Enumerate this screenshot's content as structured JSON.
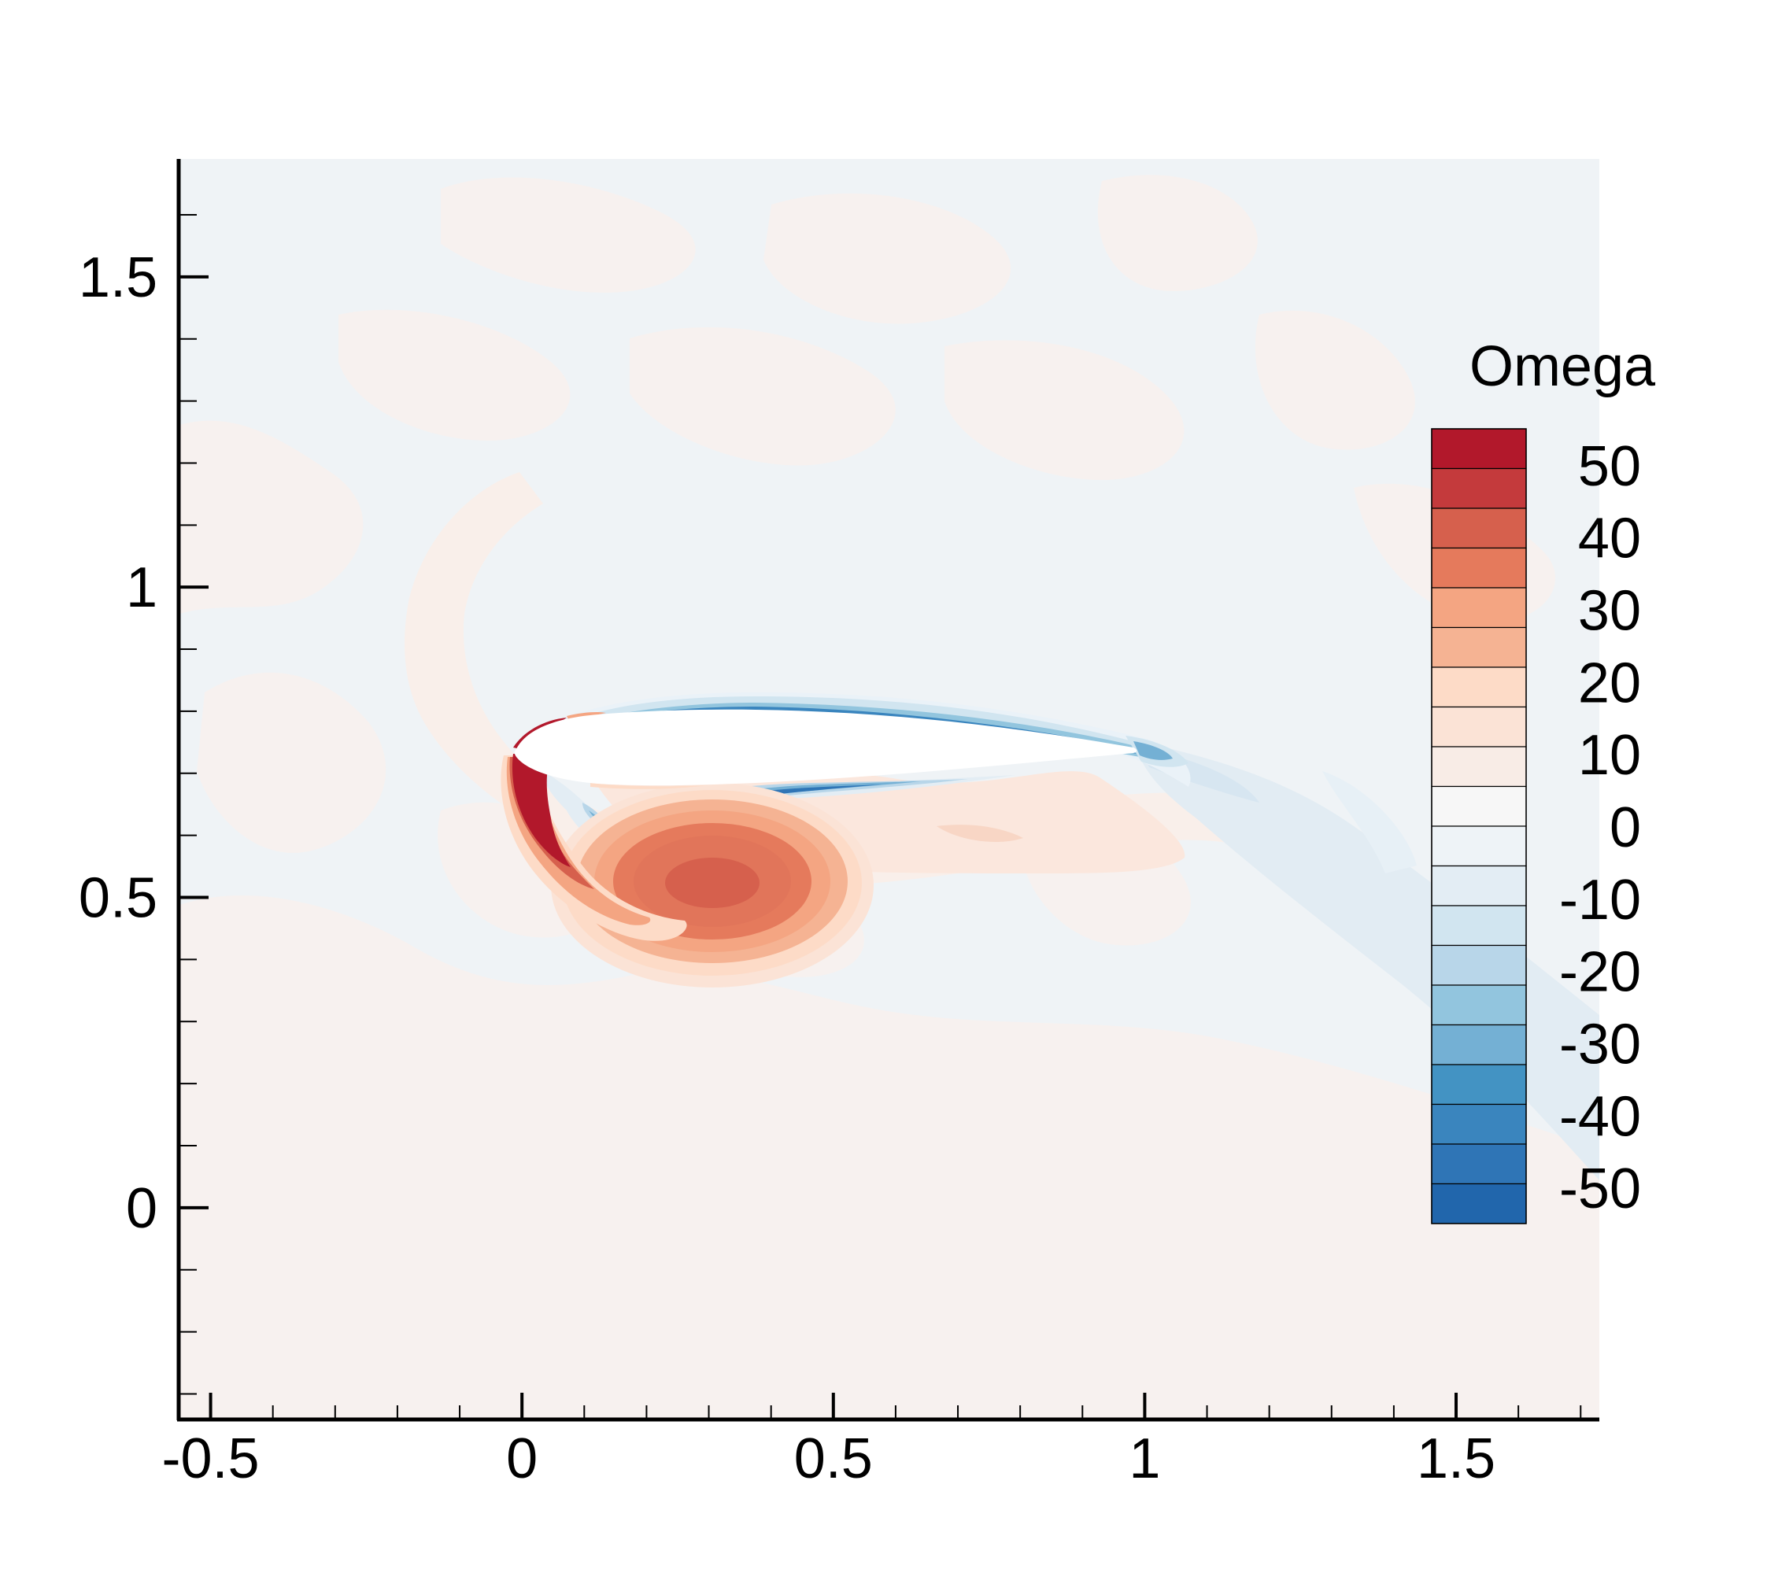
{
  "chart_data": {
    "type": "heatmap",
    "title": "",
    "xlabel": "",
    "ylabel": "",
    "xlim": [
      -0.55,
      1.73
    ],
    "ylim": [
      -0.34,
      1.69
    ],
    "x_major_ticks": [
      -0.5,
      0,
      0.5,
      1,
      1.5
    ],
    "x_tick_labels": [
      "-0.5",
      "0",
      "0.5",
      "1",
      "1.5"
    ],
    "x_minor_step": 0.1,
    "y_major_ticks": [
      0,
      0.5,
      1,
      1.5
    ],
    "y_tick_labels": [
      "0",
      "0.5",
      "1",
      "1.5"
    ],
    "y_minor_step": 0.1,
    "grid": false,
    "field": "Omega",
    "colorbar": {
      "title": "Omega",
      "placement": "right",
      "min": -55,
      "max": 55,
      "level_step": 5,
      "tick_values": [
        50,
        40,
        30,
        20,
        10,
        0,
        -10,
        -20,
        -30,
        -40,
        -50
      ],
      "tick_labels": [
        "50",
        "40",
        "30",
        "20",
        "10",
        "0",
        "-10",
        "-20",
        "-30",
        "-40",
        "-50"
      ],
      "colors_top_to_bottom": [
        "#b2182b",
        "#c43a3c",
        "#d6604d",
        "#e57a5c",
        "#f4a582",
        "#f5b393",
        "#fddbc7",
        "#fbe3d6",
        "#f8ece6",
        "#f7f7f7",
        "#eef3f7",
        "#e3edf4",
        "#d1e5f0",
        "#b8d6e9",
        "#92c5de",
        "#74b0d4",
        "#4393c3",
        "#3a85be",
        "#2f75b6",
        "#2166ac"
      ]
    },
    "features": {
      "airfoil": {
        "leading_edge": [
          0.0,
          0.74
        ],
        "trailing_edge": [
          1.0,
          0.74
        ],
        "fill": "#ffffff"
      },
      "leading_edge_shear_layer_max_omega": 55,
      "suction_side_shear_layer_min_omega": -50,
      "vortex_center": [
        0.32,
        0.52
      ],
      "vortex_peak_omega": 40
    }
  }
}
